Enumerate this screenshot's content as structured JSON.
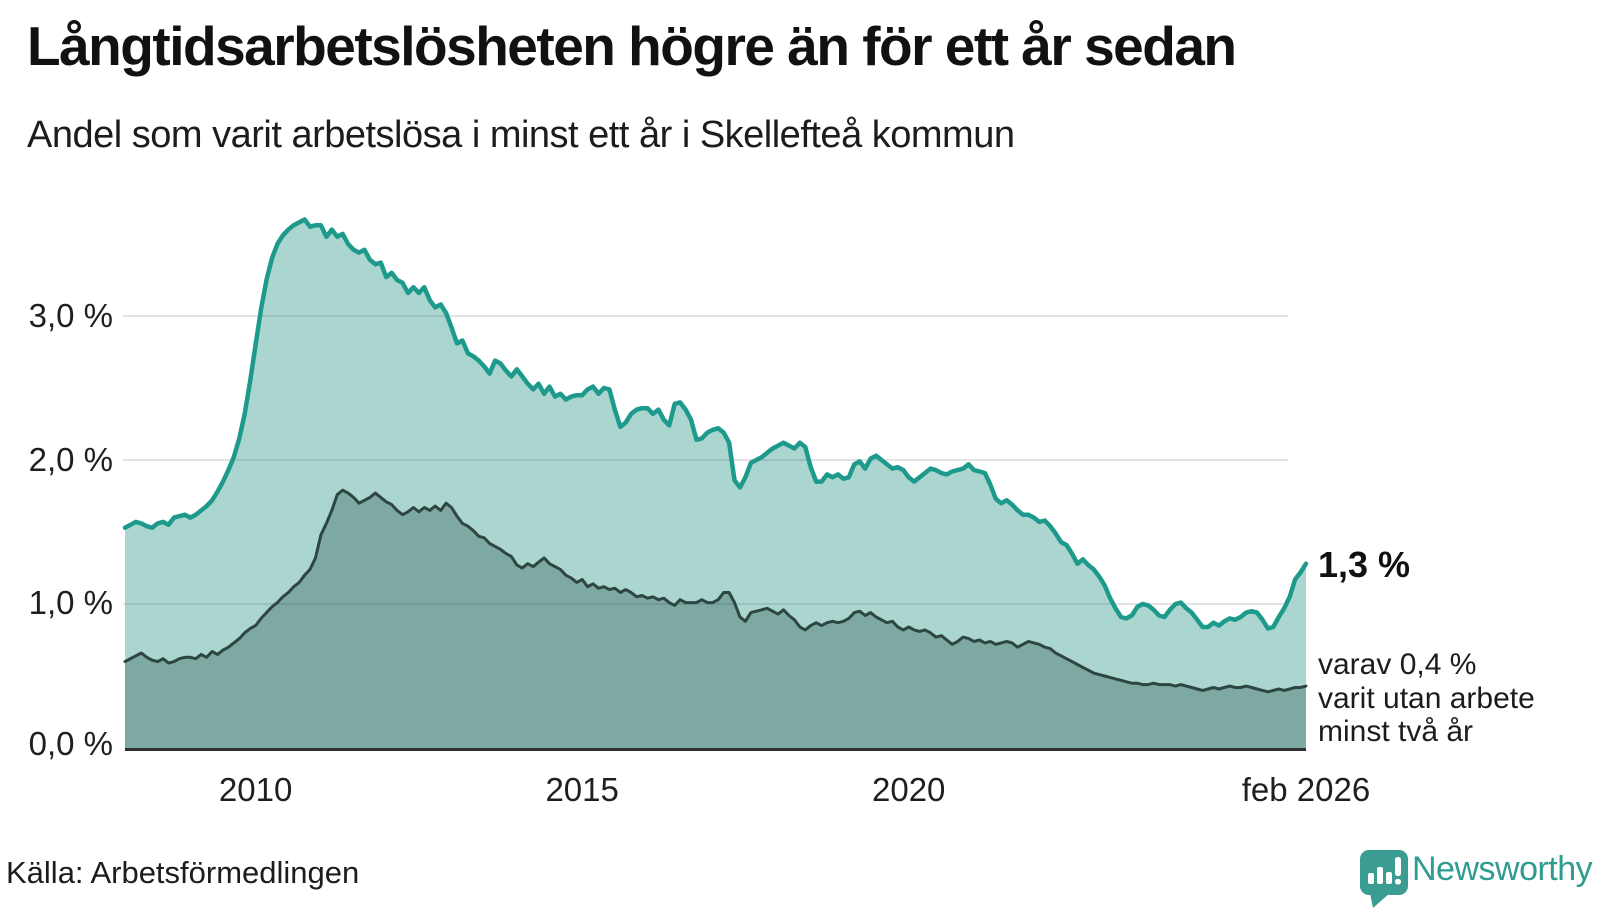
{
  "header": {
    "title": "Långtidsarbetslösheten högre än för ett år sedan",
    "subtitle": "Andel som varit arbetslösa i minst ett år i Skellefteå kommun"
  },
  "chart_data": {
    "type": "area",
    "unit": "%",
    "x_frequency": "monthly",
    "x_start": "jan 2008",
    "x_end": "feb 2026",
    "ylim": [
      0,
      3.8
    ],
    "grid": "horizontal",
    "yticks": [
      {
        "value": 3,
        "label": "3,0 %"
      },
      {
        "value": 2,
        "label": "2,0 %"
      },
      {
        "value": 1,
        "label": "1,0 %"
      },
      {
        "value": 0,
        "label": "0,0 %"
      }
    ],
    "xticks": [
      {
        "label": "2010",
        "month_index": 24
      },
      {
        "label": "2015",
        "month_index": 84
      },
      {
        "label": "2020",
        "month_index": 144
      },
      {
        "label": "feb 2026",
        "month_index": 217
      }
    ],
    "series": [
      {
        "name": "Andel arbetslösa minst ett år",
        "line_color": "#1d9a8b",
        "fill_color": "#abd6cf",
        "latest_label": "1,3 %",
        "values": [
          1.53,
          1.55,
          1.57,
          1.56,
          1.54,
          1.53,
          1.56,
          1.57,
          1.55,
          1.6,
          1.61,
          1.62,
          1.6,
          1.62,
          1.65,
          1.68,
          1.72,
          1.78,
          1.85,
          1.93,
          2.02,
          2.15,
          2.32,
          2.55,
          2.8,
          3.05,
          3.25,
          3.4,
          3.5,
          3.56,
          3.6,
          3.63,
          3.65,
          3.67,
          3.62,
          3.63,
          3.63,
          3.55,
          3.6,
          3.55,
          3.57,
          3.5,
          3.46,
          3.44,
          3.46,
          3.39,
          3.36,
          3.37,
          3.27,
          3.3,
          3.25,
          3.23,
          3.16,
          3.2,
          3.16,
          3.2,
          3.11,
          3.06,
          3.08,
          3.02,
          2.92,
          2.81,
          2.83,
          2.74,
          2.72,
          2.69,
          2.65,
          2.6,
          2.69,
          2.67,
          2.62,
          2.58,
          2.63,
          2.58,
          2.53,
          2.49,
          2.53,
          2.46,
          2.51,
          2.44,
          2.46,
          2.42,
          2.44,
          2.45,
          2.45,
          2.49,
          2.51,
          2.46,
          2.5,
          2.49,
          2.35,
          2.23,
          2.26,
          2.32,
          2.35,
          2.36,
          2.36,
          2.32,
          2.35,
          2.28,
          2.24,
          2.39,
          2.4,
          2.35,
          2.28,
          2.14,
          2.15,
          2.19,
          2.21,
          2.22,
          2.19,
          2.12,
          1.86,
          1.81,
          1.88,
          1.98,
          2.0,
          2.02,
          2.05,
          2.08,
          2.1,
          2.12,
          2.1,
          2.08,
          2.12,
          2.09,
          1.95,
          1.85,
          1.85,
          1.9,
          1.88,
          1.9,
          1.87,
          1.88,
          1.97,
          1.99,
          1.94,
          2.01,
          2.03,
          2.0,
          1.97,
          1.94,
          1.95,
          1.93,
          1.88,
          1.85,
          1.88,
          1.91,
          1.94,
          1.93,
          1.91,
          1.9,
          1.92,
          1.93,
          1.94,
          1.97,
          1.93,
          1.92,
          1.91,
          1.83,
          1.73,
          1.7,
          1.72,
          1.69,
          1.65,
          1.62,
          1.62,
          1.6,
          1.57,
          1.58,
          1.54,
          1.49,
          1.43,
          1.41,
          1.35,
          1.28,
          1.31,
          1.27,
          1.24,
          1.19,
          1.13,
          1.04,
          0.97,
          0.91,
          0.9,
          0.92,
          0.98,
          1.0,
          0.99,
          0.96,
          0.92,
          0.91,
          0.96,
          1.0,
          1.01,
          0.97,
          0.94,
          0.89,
          0.84,
          0.84,
          0.87,
          0.85,
          0.88,
          0.9,
          0.89,
          0.91,
          0.94,
          0.95,
          0.94,
          0.89,
          0.83,
          0.84,
          0.91,
          0.97,
          1.05,
          1.17,
          1.22,
          1.28
        ]
      },
      {
        "name": "varav utan arbete minst två år",
        "line_color": "#2e4641",
        "fill_color": "#7da9a2",
        "latest_label": "0,4 %",
        "values": [
          0.6,
          0.62,
          0.64,
          0.66,
          0.63,
          0.61,
          0.6,
          0.62,
          0.59,
          0.6,
          0.62,
          0.63,
          0.63,
          0.62,
          0.65,
          0.63,
          0.67,
          0.65,
          0.68,
          0.7,
          0.73,
          0.76,
          0.8,
          0.83,
          0.85,
          0.9,
          0.94,
          0.98,
          1.01,
          1.05,
          1.08,
          1.12,
          1.15,
          1.2,
          1.24,
          1.32,
          1.48,
          1.56,
          1.65,
          1.76,
          1.79,
          1.77,
          1.74,
          1.7,
          1.72,
          1.74,
          1.77,
          1.74,
          1.71,
          1.69,
          1.65,
          1.62,
          1.64,
          1.67,
          1.64,
          1.67,
          1.65,
          1.68,
          1.65,
          1.7,
          1.67,
          1.61,
          1.56,
          1.54,
          1.51,
          1.47,
          1.46,
          1.42,
          1.4,
          1.38,
          1.35,
          1.33,
          1.27,
          1.25,
          1.28,
          1.26,
          1.29,
          1.32,
          1.28,
          1.26,
          1.24,
          1.2,
          1.18,
          1.15,
          1.17,
          1.12,
          1.14,
          1.11,
          1.12,
          1.1,
          1.11,
          1.08,
          1.1,
          1.08,
          1.05,
          1.06,
          1.04,
          1.05,
          1.03,
          1.04,
          1.01,
          0.99,
          1.03,
          1.01,
          1.01,
          1.01,
          1.03,
          1.01,
          1.01,
          1.03,
          1.08,
          1.08,
          1.01,
          0.91,
          0.88,
          0.94,
          0.95,
          0.96,
          0.97,
          0.95,
          0.93,
          0.96,
          0.92,
          0.89,
          0.84,
          0.82,
          0.85,
          0.87,
          0.85,
          0.87,
          0.88,
          0.87,
          0.88,
          0.9,
          0.94,
          0.95,
          0.92,
          0.94,
          0.91,
          0.89,
          0.87,
          0.88,
          0.84,
          0.82,
          0.84,
          0.82,
          0.81,
          0.82,
          0.8,
          0.77,
          0.78,
          0.75,
          0.72,
          0.74,
          0.77,
          0.76,
          0.74,
          0.75,
          0.73,
          0.74,
          0.72,
          0.73,
          0.74,
          0.73,
          0.7,
          0.72,
          0.74,
          0.73,
          0.72,
          0.7,
          0.69,
          0.66,
          0.64,
          0.62,
          0.6,
          0.58,
          0.56,
          0.54,
          0.52,
          0.51,
          0.5,
          0.49,
          0.48,
          0.47,
          0.46,
          0.45,
          0.45,
          0.44,
          0.44,
          0.45,
          0.44,
          0.44,
          0.44,
          0.43,
          0.44,
          0.43,
          0.42,
          0.41,
          0.4,
          0.41,
          0.42,
          0.41,
          0.42,
          0.43,
          0.42,
          0.42,
          0.43,
          0.42,
          0.41,
          0.4,
          0.39,
          0.4,
          0.41,
          0.4,
          0.41,
          0.42,
          0.42,
          0.43
        ]
      }
    ],
    "annotations": [
      {
        "text": "1,3 %"
      },
      {
        "line1": "varav 0,4 %",
        "line2": "varit utan arbete",
        "line3": "minst två år"
      }
    ]
  },
  "footer": {
    "source": "Källa: Arbetsförmedlingen",
    "logo_text": "Newsworthy",
    "logo_color": "#2f9c90",
    "logo_icon_color": "#3a9c93"
  }
}
